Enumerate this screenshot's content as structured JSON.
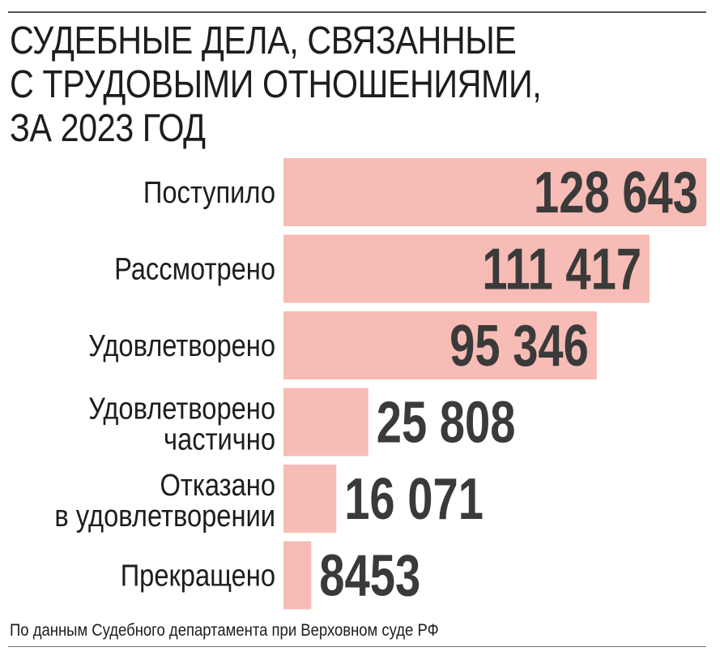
{
  "title_lines": [
    "СУДЕБНЫЕ ДЕЛА, СВЯЗАННЫЕ",
    "С ТРУДОВЫМИ ОТНОШЕНИЯМИ,",
    "ЗА 2023 ГОД"
  ],
  "source": "По данным Судебного департамента при Верховном суде РФ",
  "colors": {
    "bar": "#f7bcb5",
    "value_text": "#3a3a3a",
    "label_text": "#1d1d1d"
  },
  "chart_data": {
    "type": "bar",
    "orientation": "horizontal",
    "title": "СУДЕБНЫЕ ДЕЛА, СВЯЗАННЫЕ С ТРУДОВЫМИ ОТНОШЕНИЯМИ, ЗА 2023 ГОД",
    "categories": [
      [
        "Поступило"
      ],
      [
        "Рассмотрено"
      ],
      [
        "Удовлетворено"
      ],
      [
        "Удовлетворено",
        "частично"
      ],
      [
        "Отказано",
        "в удовлетворении"
      ],
      [
        "Прекращено"
      ]
    ],
    "values": [
      128643,
      111417,
      95346,
      25808,
      16071,
      8453
    ],
    "value_labels": [
      "128 643",
      "111 417",
      "95 346",
      "25 808",
      "16 071",
      "8453"
    ],
    "xlim": [
      0,
      128643
    ],
    "grid": false,
    "legend": "none"
  }
}
